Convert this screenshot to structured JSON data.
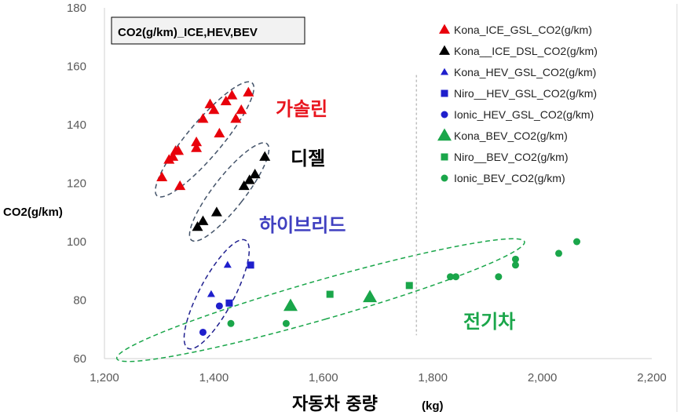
{
  "chart_data": {
    "type": "scatter",
    "title": "CO2(g/km)_ICE,HEV,BEV",
    "xlabel": "자동차 중량",
    "xlabel_unit": "(kg)",
    "ylabel": "CO2(g/km)",
    "xlim": [
      1200,
      2200
    ],
    "ylim": [
      60,
      180
    ],
    "xticks": [
      "1,200",
      "1,400",
      "1,600",
      "1,800",
      "2,000",
      "2,200"
    ],
    "yticks": [
      "60",
      "80",
      "100",
      "120",
      "140",
      "160",
      "180"
    ],
    "legend_position": "top-right",
    "grid": false,
    "series": [
      {
        "name": "Kona_ICE_GSL_CO2(g/km)",
        "marker": "triangle",
        "size": "small",
        "color": "#e8000b",
        "x": [
          1305,
          1318,
          1325,
          1330,
          1335,
          1338,
          1368,
          1368,
          1380,
          1393,
          1400,
          1410,
          1422,
          1433,
          1440,
          1450,
          1463
        ],
        "y": [
          122,
          128,
          129,
          131,
          131,
          119,
          132,
          134,
          142,
          147,
          145,
          137,
          148,
          150,
          142,
          145,
          151
        ]
      },
      {
        "name": "Kona__ICE_DSL_CO2(g/km)",
        "marker": "triangle",
        "size": "small",
        "color": "#000000",
        "x": [
          1370,
          1380,
          1405,
          1455,
          1465,
          1475,
          1493
        ],
        "y": [
          105,
          107,
          110,
          119,
          121,
          123,
          129
        ]
      },
      {
        "name": "Kona_HEV_GSL_CO2(g/km)",
        "marker": "triangle-small",
        "size": "small",
        "color": "#1f1fcc",
        "x": [
          1395,
          1425
        ],
        "y": [
          82,
          92
        ]
      },
      {
        "name": "Niro__HEV_GSL_CO2(g/km)",
        "marker": "square",
        "size": "small",
        "color": "#1f1fcc",
        "x": [
          1428,
          1467
        ],
        "y": [
          79,
          92
        ]
      },
      {
        "name": "Ionic_HEV_GSL_CO2(g/km)",
        "marker": "circle",
        "size": "small",
        "color": "#1f1fcc",
        "x": [
          1380,
          1410
        ],
        "y": [
          69,
          78
        ]
      },
      {
        "name": "Kona_BEV_CO2(g/km)",
        "marker": "triangle",
        "size": "large",
        "color": "#1aa64a",
        "x": [
          1540,
          1685
        ],
        "y": [
          78,
          81
        ]
      },
      {
        "name": "Niro__BEV_CO2(g/km)",
        "marker": "square",
        "size": "small",
        "color": "#1aa64a",
        "x": [
          1612,
          1757
        ],
        "y": [
          82,
          85
        ]
      },
      {
        "name": "Ionic_BEV_CO2(g/km)",
        "marker": "circle",
        "size": "small",
        "color": "#1aa64a",
        "x": [
          1431,
          1532,
          1832,
          1842,
          1920,
          1951,
          1951,
          2030,
          2063
        ],
        "y": [
          72,
          72,
          88,
          88,
          88,
          92,
          94,
          96,
          100
        ]
      }
    ],
    "annotations": [
      {
        "text": "가솔린",
        "color": "#e8141d"
      },
      {
        "text": "디젤",
        "color": "#000000"
      },
      {
        "text": "하이브리드",
        "color": "#4040c0"
      },
      {
        "text": "전기차",
        "color": "#1aa64a"
      }
    ],
    "groups": [
      {
        "name": "gasoline",
        "color": "#44546a",
        "cx": 1383,
        "cy": 135,
        "rx": 22,
        "ry": 94,
        "angle": 40
      },
      {
        "name": "diesel",
        "color": "#44546a",
        "cx": 1428,
        "cy": 117,
        "rx": 20,
        "ry": 78,
        "angle": 38
      },
      {
        "name": "hybrid",
        "color": "#1f1f8f",
        "cx": 1405,
        "cy": 82,
        "rx": 22,
        "ry": 78,
        "angle": 28
      },
      {
        "name": "electric",
        "color": "#1aa64a",
        "cx": 1595,
        "cy": 80,
        "rx": 25,
        "ry": 270,
        "angle": 74
      }
    ],
    "divider_x": 1770
  }
}
